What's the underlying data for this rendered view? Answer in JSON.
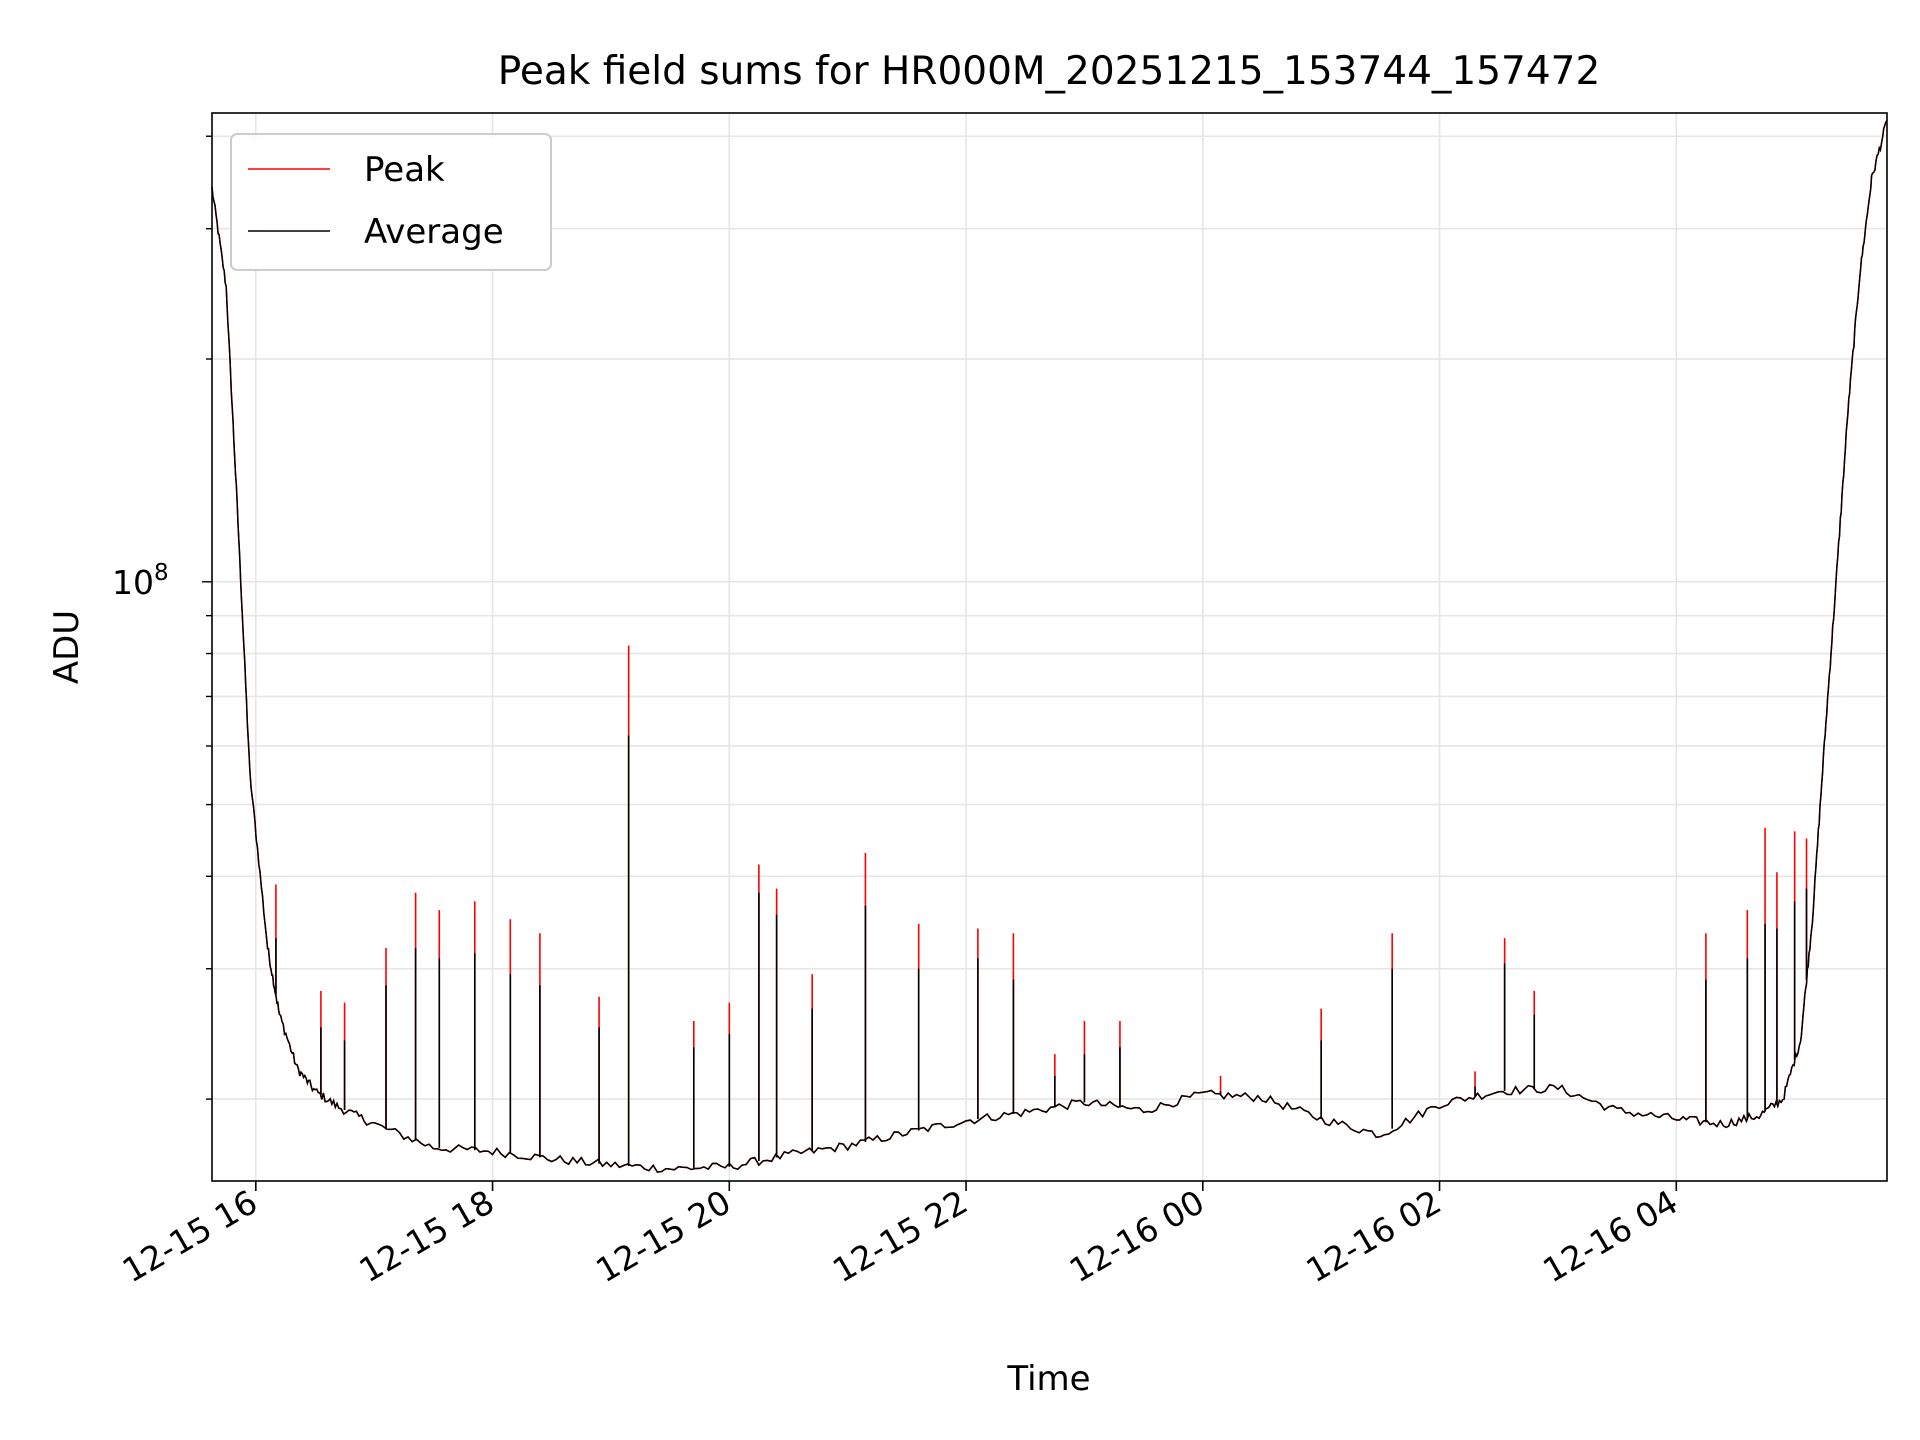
{
  "chart_data": {
    "type": "line",
    "title": "Peak field sums for HR000M_20251215_153744_157472",
    "xlabel": "Time",
    "ylabel": "ADU",
    "y_scale": "log",
    "ylim": [
      15500000,
      430000000
    ],
    "xlim_hours": [
      15.63,
      29.78
    ],
    "grid": true,
    "legend_position": "top-left",
    "x_ticks": [
      {
        "hour": 16,
        "label": "12-15 16"
      },
      {
        "hour": 18,
        "label": "12-15 18"
      },
      {
        "hour": 20,
        "label": "12-15 20"
      },
      {
        "hour": 22,
        "label": "12-15 22"
      },
      {
        "hour": 24,
        "label": "12-16 00"
      },
      {
        "hour": 26,
        "label": "12-16 02"
      },
      {
        "hour": 28,
        "label": "12-16 04"
      }
    ],
    "y_major_tick": {
      "value": 100000000,
      "base": "10",
      "exponent": "8"
    },
    "series": [
      {
        "name": "Peak",
        "color": "#ff0000",
        "points": [
          [
            15.63,
            340000000
          ],
          [
            15.75,
            250000000
          ],
          [
            15.85,
            120000000
          ],
          [
            15.95,
            55000000
          ],
          [
            16.1,
            32000000
          ],
          [
            16.2,
            26000000
          ],
          [
            16.35,
            22000000
          ],
          [
            16.5,
            20500000
          ],
          [
            16.7,
            19500000
          ],
          [
            17.0,
            18500000
          ],
          [
            17.5,
            17200000
          ],
          [
            18.0,
            17000000
          ],
          [
            18.5,
            16600000
          ],
          [
            19.0,
            16300000
          ],
          [
            19.5,
            16100000
          ],
          [
            20.0,
            16200000
          ],
          [
            20.5,
            16800000
          ],
          [
            21.0,
            17300000
          ],
          [
            21.5,
            18000000
          ],
          [
            22.0,
            18700000
          ],
          [
            22.5,
            19200000
          ],
          [
            23.0,
            19800000
          ],
          [
            23.5,
            19300000
          ],
          [
            24.0,
            20300000
          ],
          [
            24.5,
            20100000
          ],
          [
            25.0,
            18800000
          ],
          [
            25.5,
            17900000
          ],
          [
            26.0,
            19700000
          ],
          [
            26.5,
            20500000
          ],
          [
            27.0,
            20700000
          ],
          [
            27.5,
            19300000
          ],
          [
            28.0,
            18800000
          ],
          [
            28.4,
            18500000
          ],
          [
            28.7,
            19000000
          ],
          [
            28.9,
            20000000
          ],
          [
            29.05,
            24000000
          ],
          [
            29.15,
            35000000
          ],
          [
            29.25,
            60000000
          ],
          [
            29.35,
            100000000
          ],
          [
            29.45,
            170000000
          ],
          [
            29.55,
            260000000
          ],
          [
            29.65,
            350000000
          ],
          [
            29.78,
            420000000
          ]
        ],
        "spikes": [
          [
            16.17,
            39000000
          ],
          [
            16.55,
            28000000
          ],
          [
            16.75,
            27000000
          ],
          [
            17.1,
            32000000
          ],
          [
            17.35,
            38000000
          ],
          [
            17.55,
            36000000
          ],
          [
            17.85,
            37000000
          ],
          [
            18.15,
            35000000
          ],
          [
            18.4,
            33500000
          ],
          [
            18.9,
            27500000
          ],
          [
            19.15,
            82000000
          ],
          [
            19.7,
            25500000
          ],
          [
            20.0,
            27000000
          ],
          [
            20.25,
            41500000
          ],
          [
            20.4,
            38500000
          ],
          [
            20.7,
            29500000
          ],
          [
            21.15,
            43000000
          ],
          [
            21.6,
            34500000
          ],
          [
            22.1,
            34000000
          ],
          [
            22.4,
            33500000
          ],
          [
            22.75,
            23000000
          ],
          [
            23.0,
            25500000
          ],
          [
            23.3,
            25500000
          ],
          [
            24.15,
            21500000
          ],
          [
            25.0,
            26500000
          ],
          [
            25.6,
            33500000
          ],
          [
            26.3,
            21800000
          ],
          [
            26.55,
            33000000
          ],
          [
            26.8,
            28000000
          ],
          [
            28.25,
            33500000
          ],
          [
            28.6,
            36000000
          ],
          [
            28.75,
            46500000
          ],
          [
            28.85,
            40500000
          ],
          [
            29.0,
            46000000
          ],
          [
            29.1,
            45000000
          ]
        ]
      },
      {
        "name": "Average",
        "color": "#000000",
        "points": [
          [
            15.63,
            340000000
          ],
          [
            15.75,
            250000000
          ],
          [
            15.85,
            120000000
          ],
          [
            15.95,
            55000000
          ],
          [
            16.1,
            32000000
          ],
          [
            16.2,
            26000000
          ],
          [
            16.35,
            22000000
          ],
          [
            16.5,
            20500000
          ],
          [
            16.7,
            19500000
          ],
          [
            17.0,
            18500000
          ],
          [
            17.5,
            17200000
          ],
          [
            18.0,
            17000000
          ],
          [
            18.5,
            16600000
          ],
          [
            19.0,
            16300000
          ],
          [
            19.5,
            16100000
          ],
          [
            20.0,
            16200000
          ],
          [
            20.5,
            16800000
          ],
          [
            21.0,
            17300000
          ],
          [
            21.5,
            18000000
          ],
          [
            22.0,
            18700000
          ],
          [
            22.5,
            19200000
          ],
          [
            23.0,
            19800000
          ],
          [
            23.5,
            19300000
          ],
          [
            24.0,
            20300000
          ],
          [
            24.5,
            20100000
          ],
          [
            25.0,
            18800000
          ],
          [
            25.5,
            17900000
          ],
          [
            26.0,
            19700000
          ],
          [
            26.5,
            20500000
          ],
          [
            27.0,
            20700000
          ],
          [
            27.5,
            19300000
          ],
          [
            28.0,
            18800000
          ],
          [
            28.4,
            18500000
          ],
          [
            28.7,
            19000000
          ],
          [
            28.9,
            20000000
          ],
          [
            29.05,
            24000000
          ],
          [
            29.15,
            35000000
          ],
          [
            29.25,
            60000000
          ],
          [
            29.35,
            100000000
          ],
          [
            29.45,
            170000000
          ],
          [
            29.55,
            260000000
          ],
          [
            29.65,
            350000000
          ],
          [
            29.78,
            420000000
          ]
        ],
        "spikes": [
          [
            16.17,
            33000000
          ],
          [
            16.55,
            25000000
          ],
          [
            16.75,
            24000000
          ],
          [
            17.1,
            28500000
          ],
          [
            17.35,
            32000000
          ],
          [
            17.55,
            31000000
          ],
          [
            17.85,
            31500000
          ],
          [
            18.15,
            29500000
          ],
          [
            18.4,
            28500000
          ],
          [
            18.9,
            25000000
          ],
          [
            19.15,
            62000000
          ],
          [
            19.7,
            23500000
          ],
          [
            20.0,
            24500000
          ],
          [
            20.25,
            38000000
          ],
          [
            20.4,
            35500000
          ],
          [
            20.7,
            26500000
          ],
          [
            21.15,
            36500000
          ],
          [
            21.6,
            30000000
          ],
          [
            22.1,
            31000000
          ],
          [
            22.4,
            29000000
          ],
          [
            22.75,
            21500000
          ],
          [
            23.0,
            23000000
          ],
          [
            23.3,
            23500000
          ],
          [
            24.15,
            20500000
          ],
          [
            25.0,
            24000000
          ],
          [
            25.6,
            30000000
          ],
          [
            26.3,
            20800000
          ],
          [
            26.55,
            30500000
          ],
          [
            26.8,
            26000000
          ],
          [
            28.25,
            29000000
          ],
          [
            28.6,
            31000000
          ],
          [
            28.75,
            34500000
          ],
          [
            28.85,
            34000000
          ],
          [
            29.0,
            37000000
          ],
          [
            29.1,
            38500000
          ]
        ]
      }
    ]
  }
}
